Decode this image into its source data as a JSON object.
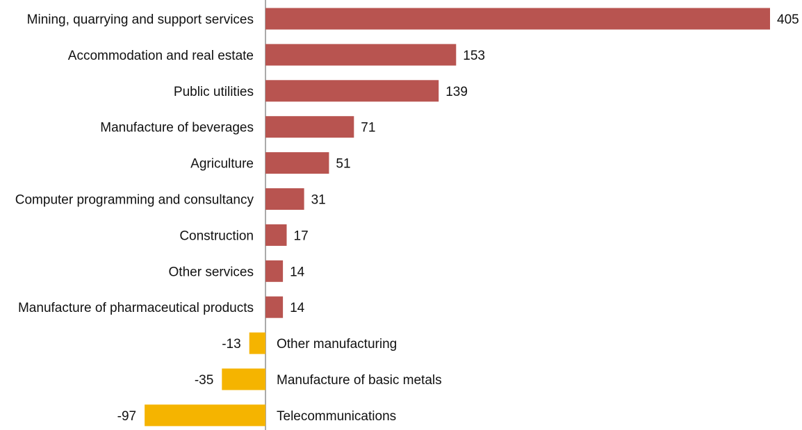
{
  "chart_data": {
    "type": "bar",
    "orientation": "horizontal",
    "categories": [
      "Mining, quarrying and support services",
      "Accommodation and real estate",
      "Public utilities",
      "Manufacture of beverages",
      "Agriculture",
      "Computer programming and consultancy",
      "Construction",
      "Other services",
      "Manufacture of pharmaceutical products",
      "Other manufacturing",
      "Manufacture of basic metals",
      "Telecommunications"
    ],
    "values": [
      405,
      153,
      139,
      71,
      51,
      31,
      17,
      14,
      14,
      -13,
      -35,
      -97
    ],
    "value_labels": [
      "405",
      "153",
      "139",
      "71",
      "51",
      "31",
      "17",
      "14",
      "14",
      "-13",
      "-35",
      "-97"
    ],
    "colors": {
      "positive": "#b85450",
      "negative": "#f5b400",
      "axis": "#555555"
    },
    "xlim": [
      -97,
      405
    ],
    "grid": false
  }
}
